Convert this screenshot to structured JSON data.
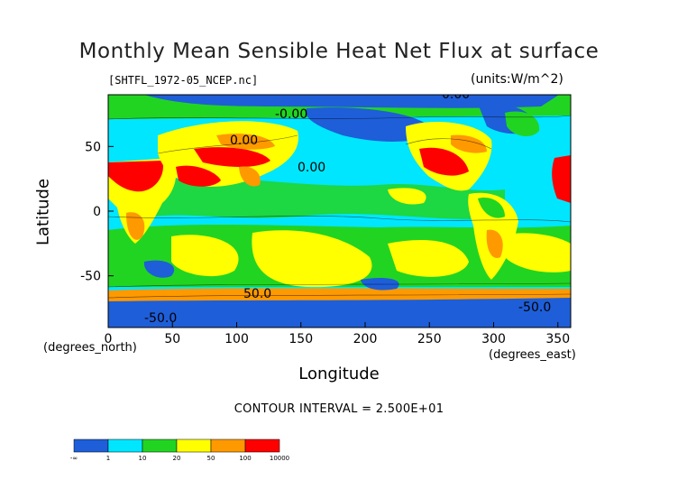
{
  "chart_data": {
    "type": "heatmap",
    "title": "Monthly Mean Sensible Heat Net Flux at surface",
    "source_file": "[SHTFL_1972-05_NCEP.nc]",
    "units_label": "(units:W/m^2)",
    "xlabel": "Longitude",
    "ylabel": "Latitude",
    "x_unit_label": "(degrees_east)",
    "y_unit_label": "(degrees_north)",
    "xlim": [
      0,
      360
    ],
    "ylim": [
      -90,
      90
    ],
    "x_ticks": [
      "0",
      "50",
      "100",
      "150",
      "200",
      "250",
      "300",
      "350"
    ],
    "x_tick_values": [
      0,
      50,
      100,
      150,
      200,
      250,
      300,
      350
    ],
    "y_ticks": [
      "50",
      "0",
      "-50"
    ],
    "y_tick_values": [
      50,
      0,
      -50
    ],
    "contour_interval": "CONTOUR INTERVAL = 2.500E+01",
    "contour_labels": [
      "0.00",
      "-0.00",
      "0.00",
      "0.00",
      "-50.0",
      "-50.0",
      "50.0"
    ],
    "colorbar": {
      "ticks": [
        "-∞",
        "1",
        "10",
        "20",
        "50",
        "100",
        "10000"
      ],
      "colors": [
        "#1e5ed8",
        "#00e6ff",
        "#22d422",
        "#ffff00",
        "#ff9900",
        "#ff0000"
      ]
    },
    "land_colors": {
      "ocean_deep": "#1e5ed8",
      "ocean_mid": "#00e6ff",
      "ocean_warm": "#22d422",
      "warm": "#ffff00",
      "hot": "#ff9900",
      "very_hot": "#ff0000"
    }
  }
}
